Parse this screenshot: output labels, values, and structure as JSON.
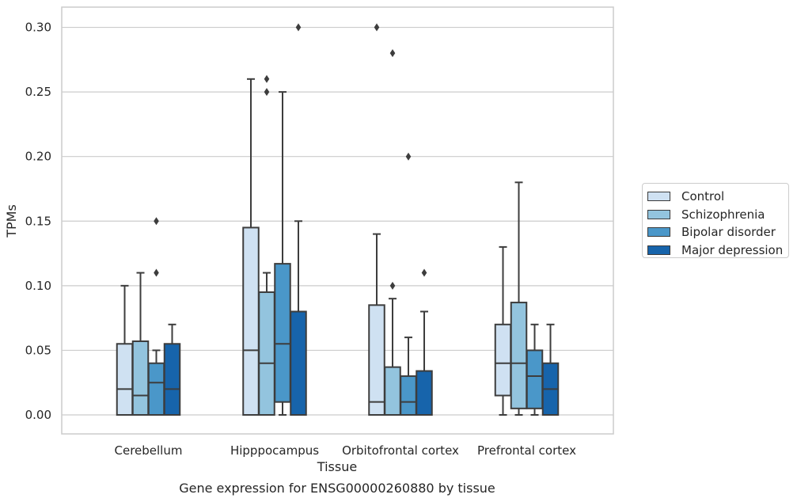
{
  "chart_data": {
    "type": "box",
    "ylabel": "TPMs",
    "xlabel": "Tissue",
    "caption": "Gene expression for ENSG00000260880 by tissue",
    "ylim": [
      -0.015,
      0.315
    ],
    "yticks": [
      "0.00",
      "0.05",
      "0.10",
      "0.15",
      "0.20",
      "0.25",
      "0.30"
    ],
    "ytick_values": [
      0.0,
      0.05,
      0.1,
      0.15,
      0.2,
      0.25,
      0.3
    ],
    "grid": "horizontal",
    "legend_position": "right",
    "categories": [
      "Cerebellum",
      "Hipppocampus",
      "Orbitofrontal cortex",
      "Prefrontal cortex"
    ],
    "series": [
      {
        "name": "Control",
        "color": "#cfe1f2",
        "boxes": [
          {
            "q1": 0.0,
            "median": 0.02,
            "q3": 0.055,
            "whisker_low": 0.0,
            "whisker_high": 0.1,
            "outliers": []
          },
          {
            "q1": 0.0,
            "median": 0.05,
            "q3": 0.145,
            "whisker_low": 0.0,
            "whisker_high": 0.26,
            "outliers": []
          },
          {
            "q1": 0.0,
            "median": 0.01,
            "q3": 0.085,
            "whisker_low": 0.0,
            "whisker_high": 0.14,
            "outliers": [
              0.3
            ]
          },
          {
            "q1": 0.015,
            "median": 0.04,
            "q3": 0.07,
            "whisker_low": 0.0,
            "whisker_high": 0.13,
            "outliers": []
          }
        ]
      },
      {
        "name": "Schizophrenia",
        "color": "#93c4de",
        "boxes": [
          {
            "q1": 0.0,
            "median": 0.015,
            "q3": 0.057,
            "whisker_low": 0.0,
            "whisker_high": 0.11,
            "outliers": []
          },
          {
            "q1": 0.0,
            "median": 0.04,
            "q3": 0.095,
            "whisker_low": 0.0,
            "whisker_high": 0.11,
            "outliers": [
              0.25,
              0.26
            ]
          },
          {
            "q1": 0.0,
            "median": 0.0,
            "q3": 0.037,
            "whisker_low": 0.0,
            "whisker_high": 0.09,
            "outliers": [
              0.1,
              0.28
            ]
          },
          {
            "q1": 0.005,
            "median": 0.04,
            "q3": 0.087,
            "whisker_low": 0.0,
            "whisker_high": 0.18,
            "outliers": []
          }
        ]
      },
      {
        "name": "Bipolar disorder",
        "color": "#4a97c9",
        "boxes": [
          {
            "q1": 0.0,
            "median": 0.025,
            "q3": 0.04,
            "whisker_low": 0.0,
            "whisker_high": 0.05,
            "outliers": [
              0.11,
              0.15
            ]
          },
          {
            "q1": 0.01,
            "median": 0.055,
            "q3": 0.117,
            "whisker_low": 0.0,
            "whisker_high": 0.25,
            "outliers": []
          },
          {
            "q1": 0.0,
            "median": 0.01,
            "q3": 0.03,
            "whisker_low": 0.0,
            "whisker_high": 0.06,
            "outliers": [
              0.2
            ]
          },
          {
            "q1": 0.005,
            "median": 0.03,
            "q3": 0.05,
            "whisker_low": 0.0,
            "whisker_high": 0.07,
            "outliers": []
          }
        ]
      },
      {
        "name": "Major depression",
        "color": "#1764ab",
        "boxes": [
          {
            "q1": 0.0,
            "median": 0.02,
            "q3": 0.055,
            "whisker_low": 0.0,
            "whisker_high": 0.07,
            "outliers": []
          },
          {
            "q1": 0.0,
            "median": 0.0,
            "q3": 0.08,
            "whisker_low": 0.0,
            "whisker_high": 0.15,
            "outliers": [
              0.3
            ]
          },
          {
            "q1": 0.0,
            "median": 0.0,
            "q3": 0.034,
            "whisker_low": 0.0,
            "whisker_high": 0.08,
            "outliers": [
              0.11
            ]
          },
          {
            "q1": 0.0,
            "median": 0.02,
            "q3": 0.04,
            "whisker_low": 0.0,
            "whisker_high": 0.07,
            "outliers": []
          }
        ]
      }
    ]
  }
}
